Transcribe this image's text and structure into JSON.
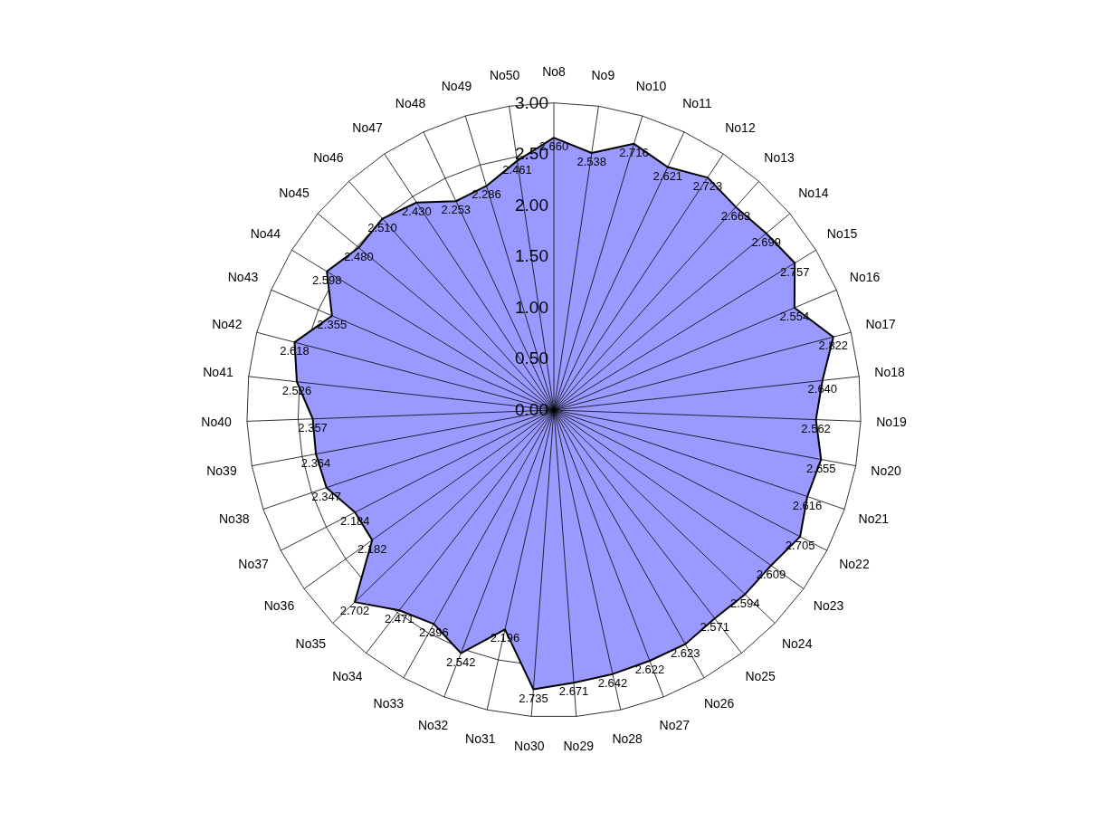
{
  "chart_data": {
    "type": "radar",
    "categories": [
      "No8",
      "No9",
      "No10",
      "No11",
      "No12",
      "No13",
      "No14",
      "No15",
      "No16",
      "No17",
      "No18",
      "No19",
      "No20",
      "No21",
      "No22",
      "No23",
      "No24",
      "No25",
      "No26",
      "No27",
      "No28",
      "No29",
      "No30",
      "No31",
      "No32",
      "No33",
      "No34",
      "No35",
      "No36",
      "No37",
      "No38",
      "No39",
      "No40",
      "No41",
      "No42",
      "No43",
      "No44",
      "No45",
      "No46",
      "No47",
      "No48",
      "No49",
      "No50"
    ],
    "series": [
      {
        "color": "#9999ff",
        "values": [
          2.66,
          2.538,
          2.716,
          2.621,
          2.723,
          2.663,
          2.699,
          2.757,
          2.554,
          2.822,
          2.64,
          2.562,
          2.655,
          2.616,
          2.705,
          2.609,
          2.594,
          2.571,
          2.623,
          2.622,
          2.642,
          2.671,
          2.735,
          2.196,
          2.542,
          2.396,
          2.471,
          2.702,
          2.182,
          2.184,
          2.347,
          2.364,
          2.357,
          2.526,
          2.618,
          2.355,
          2.598,
          2.48,
          2.51,
          2.43,
          2.253,
          2.286,
          2.461
        ],
        "value_labels": [
          "2.660",
          "2.538",
          "2.716",
          "2.621",
          "2.723",
          "2.663",
          "2.699",
          "2.757",
          "2.554",
          "2.822",
          "2.640",
          "2.562",
          "2.655",
          "2.616",
          "2.705",
          "2.609",
          "2.594",
          "2.571",
          "2.623",
          "2.622",
          "2.642",
          "2.671",
          "2.735",
          "2.196",
          "2.542",
          "2.396",
          "2.471",
          "2.702",
          "2.182",
          "2.184",
          "2.347",
          "2.364",
          "2.357",
          "2.526",
          "2.618",
          "2.355",
          "2.598",
          "2.480",
          "2.510",
          "2.430",
          "2.253",
          "2.286",
          "2.461"
        ]
      }
    ],
    "ylim": [
      0,
      3
    ],
    "yticks": [
      {
        "value": 0,
        "label": "0.00"
      },
      {
        "value": 0.5,
        "label": "0.50"
      },
      {
        "value": 1,
        "label": "1.00"
      },
      {
        "value": 1.5,
        "label": "1.50"
      },
      {
        "value": 2,
        "label": "2.00"
      },
      {
        "value": 2.5,
        "label": "2.50"
      },
      {
        "value": 3,
        "label": "3.00"
      }
    ],
    "grid": true
  }
}
